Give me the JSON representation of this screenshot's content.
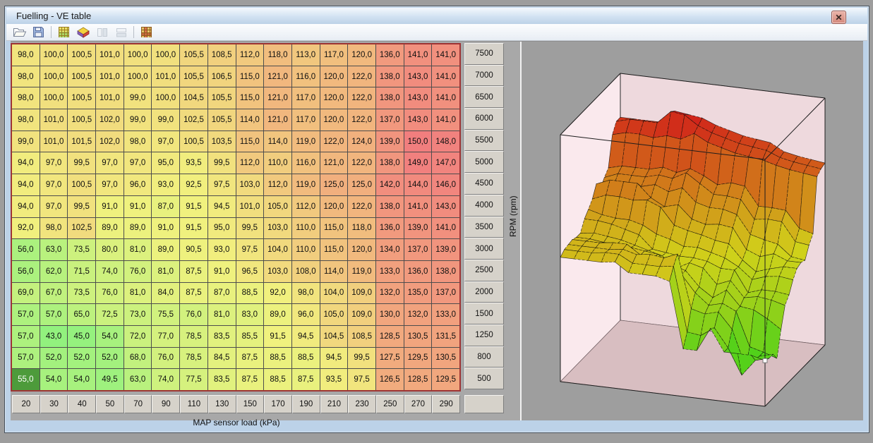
{
  "window": {
    "title": "Fuelling - VE table"
  },
  "toolbar": {
    "buttons": [
      {
        "name": "open"
      },
      {
        "name": "save"
      },
      {
        "name": "table-view"
      },
      {
        "name": "surface-3d-view"
      },
      {
        "name": "split-vertical"
      },
      {
        "name": "split-horizontal"
      },
      {
        "name": "table-compare"
      }
    ]
  },
  "ve_table": {
    "x_axis_label": "MAP sensor load (kPa)",
    "y_axis_label": "RPM (rpm)",
    "map_bins": [
      "20",
      "30",
      "40",
      "50",
      "70",
      "90",
      "110",
      "130",
      "150",
      "170",
      "190",
      "210",
      "230",
      "250",
      "270",
      "290"
    ],
    "rpm_bins": [
      "7500",
      "7000",
      "6500",
      "6000",
      "5500",
      "5000",
      "4500",
      "4000",
      "3500",
      "3000",
      "2500",
      "2000",
      "1500",
      "1250",
      "800",
      "500"
    ],
    "values": [
      [
        98,
        100,
        100.5,
        101,
        100,
        100,
        105.5,
        108.5,
        112,
        118,
        113,
        117,
        120,
        136,
        141,
        141
      ],
      [
        98,
        100,
        100.5,
        101,
        100,
        101,
        105.5,
        106.5,
        115,
        121,
        116,
        120,
        122,
        138,
        143,
        141
      ],
      [
        98,
        100,
        100.5,
        101,
        99,
        100,
        104.5,
        105.5,
        115,
        121,
        117,
        120,
        122,
        138,
        143,
        141
      ],
      [
        98,
        101,
        100.5,
        102,
        99,
        99,
        102.5,
        105.5,
        114,
        121,
        117,
        120,
        122,
        137,
        143,
        141
      ],
      [
        99,
        101,
        101.5,
        102,
        98,
        97,
        100.5,
        103.5,
        115,
        114,
        119,
        122,
        124,
        139,
        150,
        148
      ],
      [
        94,
        97,
        99.5,
        97,
        97,
        95,
        93.5,
        99.5,
        112,
        110,
        116,
        121,
        122,
        138,
        149,
        147
      ],
      [
        94,
        97,
        100.5,
        97,
        96,
        93,
        92.5,
        97.5,
        103,
        112,
        119,
        125,
        125,
        142,
        144,
        146
      ],
      [
        94,
        97,
        99.5,
        91,
        91,
        87,
        91.5,
        94.5,
        101,
        105,
        112,
        120,
        122,
        138,
        141,
        143
      ],
      [
        92,
        98,
        102.5,
        89,
        89,
        91,
        91.5,
        95,
        99.5,
        103,
        110,
        115,
        118,
        136,
        139,
        141
      ],
      [
        56,
        63,
        73.5,
        80,
        81,
        89,
        90.5,
        93,
        97.5,
        104,
        110,
        115,
        120,
        134,
        137,
        139
      ],
      [
        56,
        62,
        71.5,
        74,
        76,
        81,
        87.5,
        91,
        96.5,
        103,
        108,
        114,
        119,
        133,
        136,
        138
      ],
      [
        69,
        67,
        73.5,
        76,
        81,
        84,
        87.5,
        87,
        88.5,
        92,
        98,
        104,
        109,
        132,
        135,
        137
      ],
      [
        57,
        57,
        65,
        72.5,
        73,
        75.5,
        76,
        81,
        83,
        89,
        96,
        105,
        109,
        130,
        132,
        133
      ],
      [
        57,
        43,
        45,
        54,
        72,
        77,
        78.5,
        83.5,
        85.5,
        91.5,
        94.5,
        104.5,
        108.5,
        128.5,
        130.5,
        131.5
      ],
      [
        57,
        52,
        52,
        52,
        68,
        76,
        78.5,
        84.5,
        87.5,
        88.5,
        88.5,
        94.5,
        99.5,
        127.5,
        129.5,
        130.5
      ],
      [
        55,
        54,
        54,
        49.5,
        63,
        74,
        77.5,
        83.5,
        87.5,
        88.5,
        87.5,
        93.5,
        97.5,
        126.5,
        128.5,
        129.5
      ]
    ],
    "decimal_separator": ",",
    "selected_cell": {
      "map": "20",
      "rpm": "500",
      "value": "55,0"
    }
  },
  "chart_data": {
    "type": "surface",
    "title": "",
    "x": [
      20,
      30,
      40,
      50,
      70,
      90,
      110,
      130,
      150,
      170,
      190,
      210,
      230,
      250,
      270,
      290
    ],
    "y": [
      7500,
      7000,
      6500,
      6000,
      5500,
      5000,
      4500,
      4000,
      3500,
      3000,
      2500,
      2000,
      1500,
      1250,
      800,
      500
    ],
    "xlabel": "MAP sensor load (kPa)",
    "ylabel": "RPM (rpm)",
    "zrange": [
      43,
      150
    ],
    "z_source": "ve_table.values"
  },
  "colors": {
    "selected_cell_bg": "#4d9b3b",
    "table_border": "#9e3434",
    "header_bg": "#d6d2ca",
    "low_value": "green",
    "high_value": "red",
    "box_left_wall": "#fae9ed",
    "box_back_wall": "#eed9dd",
    "box_floor": "#d8bec1",
    "marker": "#ffffff"
  }
}
